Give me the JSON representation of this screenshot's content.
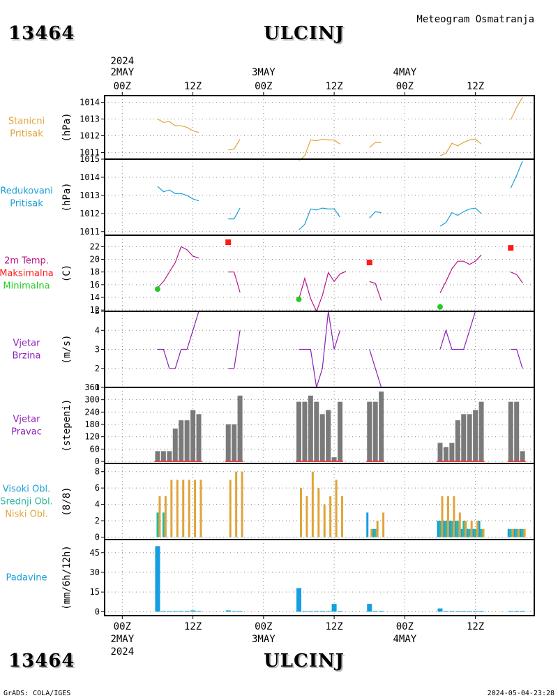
{
  "header": {
    "station_id": "13464",
    "station_name": "ULCINJ",
    "subtitle": "Meteogram Osmatranja"
  },
  "footer": {
    "left": "GrADS: COLA/IGES",
    "right": "2024-05-04-23:28"
  },
  "time_axis": {
    "year": "2024",
    "labels": [
      {
        "x": 0,
        "lines": [
          "2MAY",
          "00Z"
        ],
        "show_year": true
      },
      {
        "x": 12,
        "lines": [
          "",
          "12Z"
        ]
      },
      {
        "x": 24,
        "lines": [
          "3MAY",
          "00Z"
        ]
      },
      {
        "x": 36,
        "lines": [
          "",
          "12Z"
        ]
      },
      {
        "x": 48,
        "lines": [
          "4MAY",
          "00Z"
        ]
      },
      {
        "x": 60,
        "lines": [
          "",
          "12Z"
        ]
      }
    ],
    "xlim": [
      -3,
      70
    ]
  },
  "colors": {
    "orange": "#e0a43a",
    "cyan": "#1a9fd6",
    "magenta": "#b8168a",
    "red": "#ff1a1a",
    "green": "#22cc22",
    "purple": "#8b1fb8",
    "gray": "#7a7a7a",
    "teal": "#2cb89c",
    "blue": "#159ee0"
  },
  "chart_data": [
    {
      "type": "line",
      "id": "stanicni",
      "label_lines": [
        {
          "text": "Stanicni",
          "color": "orange"
        },
        {
          "text": "Pritisak",
          "color": "orange"
        }
      ],
      "ylabel": "(hPa)",
      "ylim": [
        1010.6,
        1014.4
      ],
      "yticks": [
        1011,
        1012,
        1013,
        1014
      ],
      "series": [
        {
          "color": "orange",
          "segments": [
            [
              [
                6,
                1013.0
              ],
              [
                7,
                1012.8
              ],
              [
                8,
                1012.85
              ],
              [
                9,
                1012.6
              ],
              [
                10,
                1012.6
              ],
              [
                11,
                1012.5
              ],
              [
                12,
                1012.3
              ],
              [
                13,
                1012.2
              ]
            ],
            [
              [
                18,
                1011.15
              ],
              [
                19,
                1011.2
              ],
              [
                20,
                1011.8
              ]
            ],
            [
              [
                30,
                1010.5
              ],
              [
                31,
                1010.8
              ],
              [
                32,
                1011.75
              ],
              [
                33,
                1011.7
              ],
              [
                34,
                1011.8
              ],
              [
                35,
                1011.75
              ],
              [
                36,
                1011.75
              ],
              [
                37,
                1011.5
              ]
            ],
            [
              [
                42,
                1011.3
              ],
              [
                43,
                1011.6
              ],
              [
                44,
                1011.6
              ]
            ],
            [
              [
                54,
                1010.8
              ],
              [
                55,
                1010.95
              ],
              [
                56,
                1011.55
              ],
              [
                57,
                1011.4
              ],
              [
                58,
                1011.6
              ],
              [
                59,
                1011.75
              ],
              [
                60,
                1011.8
              ],
              [
                61,
                1011.5
              ]
            ],
            [
              [
                66,
                1012.95
              ],
              [
                67,
                1013.7
              ],
              [
                68,
                1014.3
              ]
            ]
          ]
        }
      ]
    },
    {
      "type": "line",
      "id": "redukovani",
      "label_lines": [
        {
          "text": "Redukovani",
          "color": "cyan"
        },
        {
          "text": "Pritisak",
          "color": "cyan"
        }
      ],
      "ylabel": "(hPa)",
      "ylim": [
        1010.8,
        1015.0
      ],
      "yticks": [
        1011,
        1012,
        1013,
        1014,
        1015
      ],
      "series": [
        {
          "color": "cyan",
          "segments": [
            [
              [
                6,
                1013.5
              ],
              [
                7,
                1013.2
              ],
              [
                8,
                1013.3
              ],
              [
                9,
                1013.1
              ],
              [
                10,
                1013.1
              ],
              [
                11,
                1013.0
              ],
              [
                12,
                1012.8
              ],
              [
                13,
                1012.7
              ]
            ],
            [
              [
                18,
                1011.7
              ],
              [
                19,
                1011.7
              ],
              [
                20,
                1012.3
              ]
            ],
            [
              [
                30,
                1011.1
              ],
              [
                31,
                1011.4
              ],
              [
                32,
                1012.25
              ],
              [
                33,
                1012.2
              ],
              [
                34,
                1012.3
              ],
              [
                35,
                1012.25
              ],
              [
                36,
                1012.25
              ],
              [
                37,
                1011.8
              ]
            ],
            [
              [
                42,
                1011.75
              ],
              [
                43,
                1012.1
              ],
              [
                44,
                1012.05
              ]
            ],
            [
              [
                54,
                1011.3
              ],
              [
                55,
                1011.5
              ],
              [
                56,
                1012.05
              ],
              [
                57,
                1011.9
              ],
              [
                58,
                1012.1
              ],
              [
                59,
                1012.25
              ],
              [
                60,
                1012.3
              ],
              [
                61,
                1012.0
              ]
            ],
            [
              [
                66,
                1013.4
              ],
              [
                67,
                1014.1
              ],
              [
                68,
                1014.9
              ]
            ]
          ]
        }
      ]
    },
    {
      "type": "line",
      "id": "temperatura",
      "label_lines": [
        {
          "text": "2m Temp.",
          "color": "magenta"
        },
        {
          "text": "Maksimalna",
          "color": "red"
        },
        {
          "text": "Minimalna",
          "color": "green"
        }
      ],
      "ylabel": "(C)",
      "ylim": [
        11.8,
        23.8
      ],
      "yticks": [
        12,
        14,
        16,
        18,
        20,
        22
      ],
      "series": [
        {
          "color": "magenta",
          "segments": [
            [
              [
                6,
                15.5
              ],
              [
                7,
                16.5
              ],
              [
                8,
                18.0
              ],
              [
                9,
                19.5
              ],
              [
                10,
                22.0
              ],
              [
                11,
                21.5
              ],
              [
                12,
                20.5
              ],
              [
                13,
                20.2
              ]
            ],
            [
              [
                18,
                18.0
              ],
              [
                19,
                18.0
              ],
              [
                20,
                14.8
              ]
            ],
            [
              [
                30,
                13.7
              ],
              [
                31,
                17.0
              ],
              [
                32,
                13.8
              ],
              [
                33,
                11.8
              ],
              [
                34,
                14.3
              ],
              [
                35,
                17.9
              ],
              [
                36,
                16.5
              ],
              [
                37,
                17.7
              ],
              [
                38,
                18.1
              ]
            ],
            [
              [
                42,
                16.5
              ],
              [
                43,
                16.2
              ],
              [
                44,
                13.5
              ]
            ],
            [
              [
                54,
                14.7
              ],
              [
                55,
                16.5
              ],
              [
                56,
                18.5
              ],
              [
                57,
                19.7
              ],
              [
                58,
                19.7
              ],
              [
                59,
                19.2
              ],
              [
                60,
                19.7
              ],
              [
                61,
                20.7
              ]
            ],
            [
              [
                66,
                18.0
              ],
              [
                67,
                17.6
              ],
              [
                68,
                16.3
              ]
            ]
          ]
        }
      ],
      "max_points": [
        [
          18,
          22.7
        ],
        [
          42,
          19.5
        ],
        [
          66,
          21.8
        ]
      ],
      "min_points": [
        [
          6,
          15.3
        ],
        [
          30,
          13.7
        ],
        [
          54,
          12.5
        ]
      ]
    },
    {
      "type": "line",
      "id": "vjetar_brzina",
      "label_lines": [
        {
          "text": "Vjetar",
          "color": "purple"
        },
        {
          "text": "Brzina",
          "color": "purple"
        }
      ],
      "ylabel": "(m/s)",
      "ylim": [
        1,
        5
      ],
      "yticks": [
        1,
        2,
        3,
        4,
        5
      ],
      "series": [
        {
          "color": "purple",
          "segments": [
            [
              [
                6,
                3
              ],
              [
                7,
                3
              ],
              [
                8,
                2
              ],
              [
                9,
                2
              ],
              [
                10,
                3
              ],
              [
                11,
                3
              ],
              [
                12,
                4
              ],
              [
                13,
                5
              ]
            ],
            [
              [
                18,
                2
              ],
              [
                19,
                2
              ],
              [
                20,
                4
              ]
            ],
            [
              [
                30,
                3
              ],
              [
                31,
                3
              ],
              [
                32,
                3
              ],
              [
                33,
                1
              ],
              [
                34,
                2
              ],
              [
                35,
                5
              ],
              [
                36,
                3
              ],
              [
                37,
                4
              ]
            ],
            [
              [
                42,
                3
              ],
              [
                43,
                2
              ],
              [
                44,
                1
              ]
            ],
            [
              [
                54,
                3
              ],
              [
                55,
                4
              ],
              [
                56,
                3
              ],
              [
                57,
                3
              ],
              [
                58,
                3
              ],
              [
                59,
                4
              ],
              [
                60,
                5
              ],
              [
                61,
                5
              ]
            ],
            [
              [
                66,
                3
              ],
              [
                67,
                3
              ],
              [
                68,
                2
              ]
            ]
          ]
        }
      ]
    },
    {
      "type": "bar",
      "id": "vjetar_pravac",
      "label_lines": [
        {
          "text": "Vjetar",
          "color": "purple"
        },
        {
          "text": "Pravac",
          "color": "purple"
        }
      ],
      "ylabel": "(stepeni)",
      "ylim": [
        -10,
        360
      ],
      "yticks": [
        0,
        60,
        120,
        180,
        240,
        300,
        360
      ],
      "x": [
        6,
        7,
        8,
        9,
        10,
        11,
        12,
        13,
        18,
        19,
        20,
        30,
        31,
        32,
        33,
        34,
        35,
        36,
        37,
        42,
        43,
        44,
        54,
        55,
        56,
        57,
        58,
        59,
        60,
        61,
        66,
        67,
        68
      ],
      "values": [
        50,
        50,
        50,
        160,
        200,
        200,
        250,
        230,
        180,
        180,
        320,
        290,
        290,
        320,
        290,
        230,
        250,
        20,
        290,
        290,
        290,
        340,
        90,
        70,
        90,
        200,
        230,
        230,
        250,
        290,
        290,
        290,
        50
      ],
      "color": "gray",
      "baseline_color": "red"
    },
    {
      "type": "bar",
      "id": "oblacnost",
      "label_lines": [
        {
          "text": "Visoki Obl.",
          "color": "cyan"
        },
        {
          "text": "Srednji Obl.",
          "color": "teal"
        },
        {
          "text": "Niski Obl.",
          "color": "orange"
        }
      ],
      "ylabel": "(8/8)",
      "ylim": [
        -0.3,
        9
      ],
      "yticks": [
        0,
        2,
        4,
        6,
        8
      ],
      "x": [
        6,
        7,
        8,
        9,
        10,
        11,
        12,
        13,
        18,
        19,
        20,
        30,
        31,
        32,
        33,
        34,
        35,
        36,
        37,
        42,
        43,
        44,
        54,
        55,
        56,
        57,
        58,
        59,
        60,
        61,
        66,
        67,
        68
      ],
      "series": [
        {
          "name": "Visoki Obl.",
          "color": "blue",
          "values": [
            0,
            0,
            0,
            0,
            0,
            0,
            0,
            0,
            0,
            0,
            0,
            0,
            0,
            0,
            0,
            0,
            0,
            0,
            0,
            3,
            1,
            0,
            2,
            2,
            2,
            2,
            1,
            1,
            1,
            2,
            1,
            1,
            1
          ]
        },
        {
          "name": "Srednji Obl.",
          "color": "teal",
          "values": [
            3,
            3,
            0,
            0,
            0,
            0,
            0,
            0,
            0,
            0,
            0,
            0,
            0,
            0,
            0,
            0,
            0,
            0,
            0,
            0,
            1,
            0,
            2,
            2,
            2,
            2,
            2,
            1,
            1,
            1,
            1,
            1,
            1
          ]
        },
        {
          "name": "Niski Obl.",
          "color": "orange",
          "values": [
            5,
            5,
            7,
            7,
            7,
            7,
            7,
            7,
            7,
            8,
            8,
            6,
            5,
            8,
            6,
            4,
            5,
            7,
            5,
            1,
            2,
            3,
            5,
            5,
            5,
            3,
            2,
            2,
            2,
            1,
            1,
            1,
            1
          ]
        }
      ]
    },
    {
      "type": "bar",
      "id": "padavine",
      "label_lines": [
        {
          "text": "Padavine",
          "color": "cyan"
        }
      ],
      "ylabel": "(mm/6h/12h)",
      "ylim": [
        -3,
        55
      ],
      "yticks": [
        0,
        15,
        30,
        45
      ],
      "x": [
        6,
        7,
        8,
        9,
        10,
        11,
        12,
        13,
        18,
        19,
        20,
        30,
        31,
        32,
        33,
        34,
        35,
        36,
        37,
        42,
        43,
        44,
        54,
        55,
        56,
        57,
        58,
        59,
        60,
        61,
        66,
        67,
        68
      ],
      "values": [
        50,
        0.5,
        0.5,
        0.5,
        0.5,
        0.5,
        1,
        0.5,
        1,
        0.5,
        0.5,
        18,
        0.5,
        0.5,
        0.5,
        0.5,
        0.5,
        6,
        0.5,
        6,
        0.5,
        0.5,
        2.5,
        0.5,
        0.5,
        0.5,
        0.5,
        0.5,
        0.5,
        0.5,
        0.5,
        0.5,
        0.5
      ],
      "color": "blue"
    }
  ]
}
